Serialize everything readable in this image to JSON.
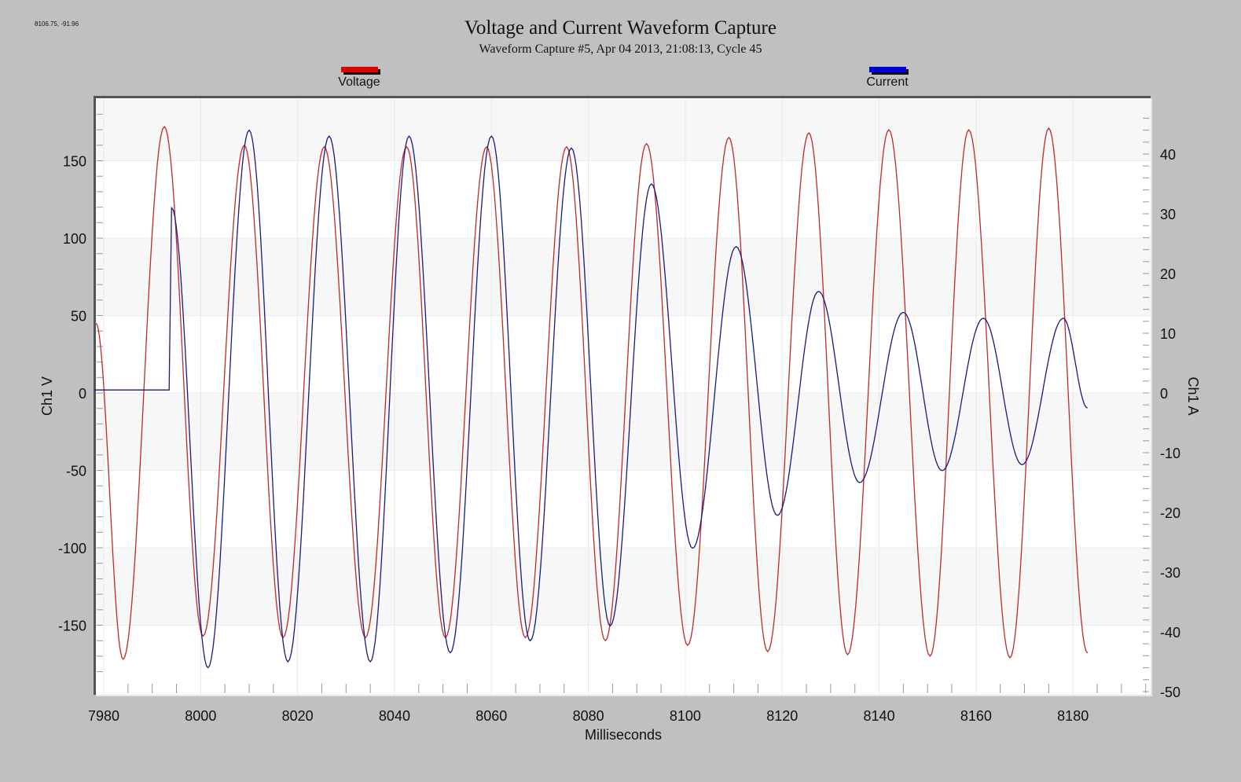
{
  "cursor_readout": "8106.75, -91.96",
  "chart_data": {
    "type": "line",
    "title": "Voltage and Current Waveform Capture",
    "subtitle": "Waveform Capture #5, Apr 04 2013, 21:08:13,  Cycle 45",
    "xlabel": "Milliseconds",
    "ylabel_left": "Ch1 V",
    "ylabel_right": "Ch1 A",
    "xlim": [
      7978,
      8198
    ],
    "ylim_left": [
      -190,
      190
    ],
    "ylim_right": [
      -50,
      50
    ],
    "x_ticks": [
      7980,
      8000,
      8020,
      8040,
      8060,
      8080,
      8100,
      8120,
      8140,
      8160,
      8180
    ],
    "y_left_ticks": [
      150,
      100,
      50,
      0,
      -50,
      -100,
      -150
    ],
    "y_right_ticks": [
      40,
      30,
      20,
      10,
      0,
      -10,
      -20,
      -30,
      -40,
      -50
    ],
    "legend": [
      {
        "name": "Voltage",
        "color": "#e00000",
        "line_color": "#c0282a",
        "axis": "left"
      },
      {
        "name": "Current",
        "color": "#0000e0",
        "line_color": "#1a1a7a",
        "axis": "right"
      }
    ],
    "grid": true,
    "series": [
      {
        "name": "Voltage",
        "unit": "V",
        "frequency_hz": 60,
        "x_range": [
          7978,
          8183
        ],
        "peaks": [
          {
            "x": 7992.5,
            "y": 172
          },
          {
            "x": 8009,
            "y": 160
          },
          {
            "x": 8025.5,
            "y": 159
          },
          {
            "x": 8042.5,
            "y": 159
          },
          {
            "x": 8059,
            "y": 159
          },
          {
            "x": 8075.5,
            "y": 159
          },
          {
            "x": 8092,
            "y": 161
          },
          {
            "x": 8109,
            "y": 165
          },
          {
            "x": 8125.5,
            "y": 168
          },
          {
            "x": 8142,
            "y": 170
          },
          {
            "x": 8158.5,
            "y": 170
          },
          {
            "x": 8175,
            "y": 171
          }
        ],
        "troughs": [
          {
            "x": 7984,
            "y": -172
          },
          {
            "x": 8000.5,
            "y": -157
          },
          {
            "x": 8017,
            "y": -158
          },
          {
            "x": 8034,
            "y": -158
          },
          {
            "x": 8050.5,
            "y": -158
          },
          {
            "x": 8067,
            "y": -158
          },
          {
            "x": 8083.5,
            "y": -160
          },
          {
            "x": 8100.5,
            "y": -163
          },
          {
            "x": 8117,
            "y": -167
          },
          {
            "x": 8133.5,
            "y": -169
          },
          {
            "x": 8150.5,
            "y": -170
          },
          {
            "x": 8167,
            "y": -171
          }
        ]
      },
      {
        "name": "Current",
        "unit": "A",
        "x_range": [
          7978,
          8183
        ],
        "pre_trigger_level": 0.5,
        "trigger_x": 7993.5,
        "peaks": [
          {
            "x": 7994,
            "y": 31
          },
          {
            "x": 8010,
            "y": 44
          },
          {
            "x": 8026.5,
            "y": 43
          },
          {
            "x": 8043,
            "y": 43
          },
          {
            "x": 8060,
            "y": 43
          },
          {
            "x": 8076.5,
            "y": 41
          },
          {
            "x": 8093,
            "y": 35
          },
          {
            "x": 8110.5,
            "y": 24.5
          },
          {
            "x": 8127.5,
            "y": 17
          },
          {
            "x": 8145,
            "y": 13.5
          },
          {
            "x": 8161.5,
            "y": 12.5
          },
          {
            "x": 8178,
            "y": 12.5
          }
        ],
        "troughs": [
          {
            "x": 8001.5,
            "y": -46
          },
          {
            "x": 8018,
            "y": -45
          },
          {
            "x": 8035,
            "y": -45
          },
          {
            "x": 8051.5,
            "y": -43.5
          },
          {
            "x": 8068,
            "y": -41.5
          },
          {
            "x": 8084.5,
            "y": -39
          },
          {
            "x": 8101.5,
            "y": -26
          },
          {
            "x": 8119,
            "y": -20.5
          },
          {
            "x": 8136,
            "y": -15
          },
          {
            "x": 8153,
            "y": -13
          },
          {
            "x": 8169.5,
            "y": -12
          }
        ],
        "end": {
          "x": 8183,
          "y": -2.5
        }
      }
    ]
  }
}
